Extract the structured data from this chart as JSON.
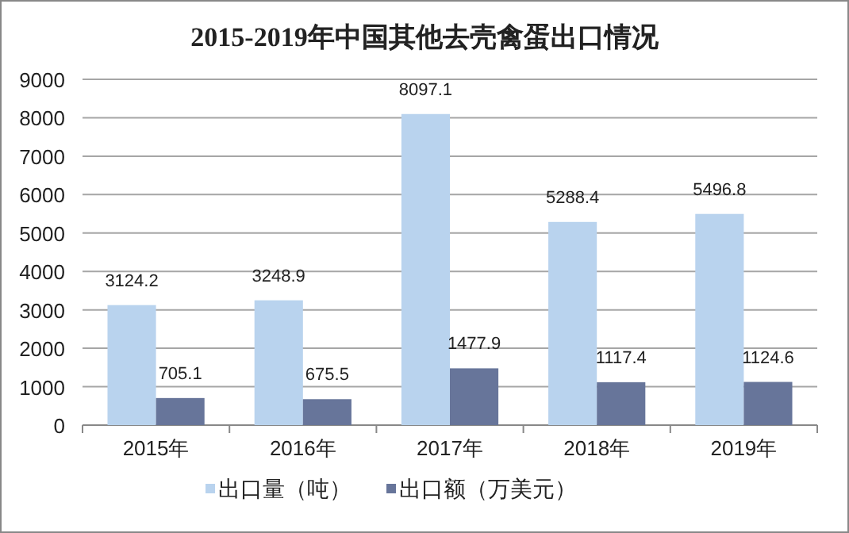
{
  "chart_data": {
    "type": "bar",
    "title": "2015-2019年中国其他去壳禽蛋出口情况",
    "categories": [
      "2015年",
      "2016年",
      "2017年",
      "2018年",
      "2019年"
    ],
    "series": [
      {
        "name": "出口量（吨）",
        "color": "#b9d3ee",
        "values": [
          3124.2,
          3248.9,
          8097.1,
          5288.4,
          5496.8
        ]
      },
      {
        "name": "出口额（万美元）",
        "color": "#67759a",
        "values": [
          705.1,
          675.5,
          1477.9,
          1117.4,
          1124.6
        ]
      }
    ],
    "ylim": [
      0,
      9000
    ],
    "yticks": [
      0,
      1000,
      2000,
      3000,
      4000,
      5000,
      6000,
      7000,
      8000,
      9000
    ],
    "grid": "y",
    "legend": "bottom",
    "data_labels": true
  }
}
